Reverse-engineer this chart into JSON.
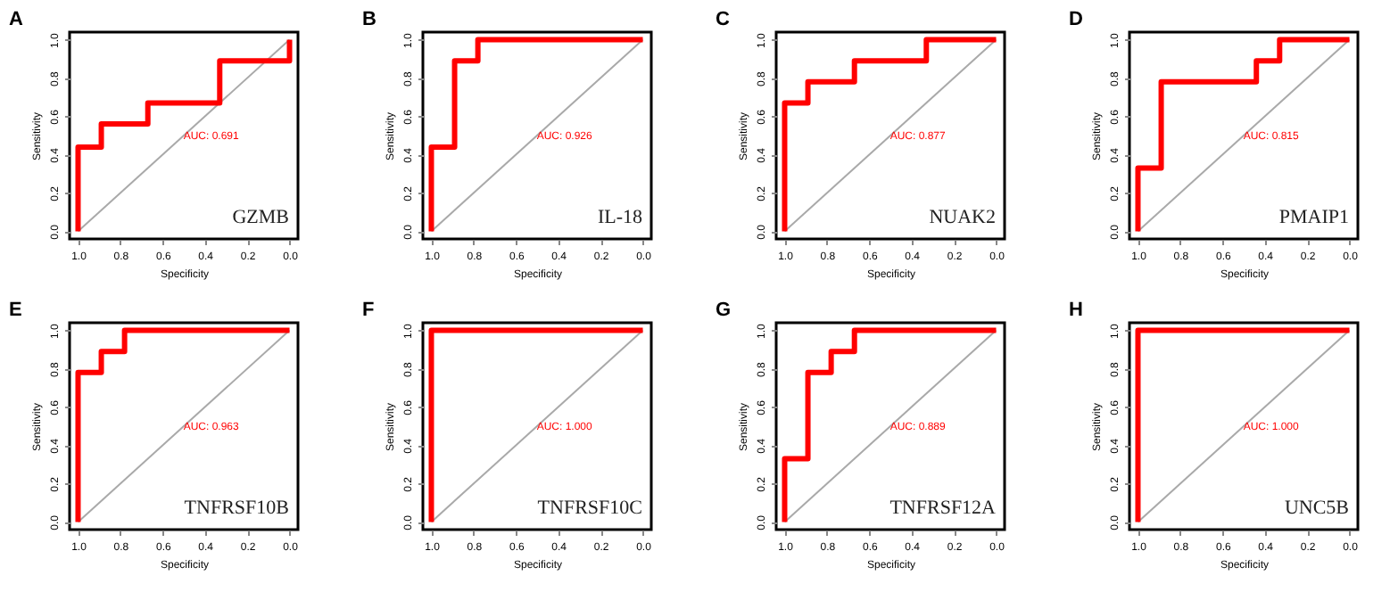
{
  "chart_data": [
    {
      "type": "line",
      "title": "A",
      "xlabel": "Specificity",
      "ylabel": "Sensitivity",
      "xlim": [
        1.04,
        -0.04
      ],
      "ylim": [
        -0.04,
        1.04
      ],
      "xticks": [
        {
          "value": 1,
          "label": "1.0"
        },
        {
          "value": 0.8,
          "label": "0.8"
        },
        {
          "value": 0.6,
          "label": "0.6"
        },
        {
          "value": 0.4,
          "label": "0.4"
        },
        {
          "value": 0.2,
          "label": "0.2"
        },
        {
          "value": 0,
          "label": "0.0"
        }
      ],
      "yticks": [
        {
          "value": 0,
          "label": "0.0"
        },
        {
          "value": 0.2,
          "label": "0.2"
        },
        {
          "value": 0.4,
          "label": "0.4"
        },
        {
          "value": 0.6,
          "label": "0.6"
        },
        {
          "value": 0.8,
          "label": "0.8"
        },
        {
          "value": 1,
          "label": "1.0"
        }
      ],
      "annotations": [
        "AUC: 0.691",
        "GZMB"
      ],
      "series": [
        {
          "type": "line",
          "color": "#a9a9a9",
          "x": [
            1,
            0
          ],
          "values": [
            0,
            1
          ]
        },
        {
          "type": "line",
          "color": "#ff0000",
          "x": [
            1,
            1,
            0.89,
            0.89,
            0.67,
            0.67,
            0.33,
            0.33,
            0,
            0
          ],
          "values": [
            0,
            0.44,
            0.44,
            0.56,
            0.56,
            0.67,
            0.67,
            0.89,
            0.89,
            1
          ]
        }
      ]
    },
    {
      "type": "line",
      "title": "B",
      "xlabel": "Specificity",
      "ylabel": "Sensitivity",
      "xlim": [
        1.04,
        -0.04
      ],
      "ylim": [
        -0.04,
        1.04
      ],
      "xticks": [
        {
          "value": 1,
          "label": "1.0"
        },
        {
          "value": 0.8,
          "label": "0.8"
        },
        {
          "value": 0.6,
          "label": "0.6"
        },
        {
          "value": 0.4,
          "label": "0.4"
        },
        {
          "value": 0.2,
          "label": "0.2"
        },
        {
          "value": 0,
          "label": "0.0"
        }
      ],
      "yticks": [
        {
          "value": 0,
          "label": "0.0"
        },
        {
          "value": 0.2,
          "label": "0.2"
        },
        {
          "value": 0.4,
          "label": "0.4"
        },
        {
          "value": 0.6,
          "label": "0.6"
        },
        {
          "value": 0.8,
          "label": "0.8"
        },
        {
          "value": 1,
          "label": "1.0"
        }
      ],
      "annotations": [
        "AUC: 0.926",
        "IL-18"
      ],
      "series": [
        {
          "type": "line",
          "color": "#a9a9a9",
          "x": [
            1,
            0
          ],
          "values": [
            0,
            1
          ]
        },
        {
          "type": "line",
          "color": "#ff0000",
          "x": [
            1,
            1,
            0.89,
            0.89,
            0.78,
            0.78,
            0
          ],
          "values": [
            0,
            0.44,
            0.44,
            0.89,
            0.89,
            1,
            1
          ]
        }
      ]
    },
    {
      "type": "line",
      "title": "C",
      "xlabel": "Specificity",
      "ylabel": "Sensitivity",
      "xlim": [
        1.04,
        -0.04
      ],
      "ylim": [
        -0.04,
        1.04
      ],
      "xticks": [
        {
          "value": 1,
          "label": "1.0"
        },
        {
          "value": 0.8,
          "label": "0.8"
        },
        {
          "value": 0.6,
          "label": "0.6"
        },
        {
          "value": 0.4,
          "label": "0.4"
        },
        {
          "value": 0.2,
          "label": "0.2"
        },
        {
          "value": 0,
          "label": "0.0"
        }
      ],
      "yticks": [
        {
          "value": 0,
          "label": "0.0"
        },
        {
          "value": 0.2,
          "label": "0.2"
        },
        {
          "value": 0.4,
          "label": "0.4"
        },
        {
          "value": 0.6,
          "label": "0.6"
        },
        {
          "value": 0.8,
          "label": "0.8"
        },
        {
          "value": 1,
          "label": "1.0"
        }
      ],
      "annotations": [
        "AUC: 0.877",
        "NUAK2"
      ],
      "series": [
        {
          "type": "line",
          "color": "#a9a9a9",
          "x": [
            1,
            0
          ],
          "values": [
            0,
            1
          ]
        },
        {
          "type": "line",
          "color": "#ff0000",
          "x": [
            1,
            1,
            0.89,
            0.89,
            0.67,
            0.67,
            0.33,
            0.33,
            0
          ],
          "values": [
            0,
            0.67,
            0.67,
            0.78,
            0.78,
            0.89,
            0.89,
            1,
            1
          ]
        }
      ]
    },
    {
      "type": "line",
      "title": "D",
      "xlabel": "Specificity",
      "ylabel": "Sensitivity",
      "xlim": [
        1.04,
        -0.04
      ],
      "ylim": [
        -0.04,
        1.04
      ],
      "xticks": [
        {
          "value": 1,
          "label": "1.0"
        },
        {
          "value": 0.8,
          "label": "0.8"
        },
        {
          "value": 0.6,
          "label": "0.6"
        },
        {
          "value": 0.4,
          "label": "0.4"
        },
        {
          "value": 0.2,
          "label": "0.2"
        },
        {
          "value": 0,
          "label": "0.0"
        }
      ],
      "yticks": [
        {
          "value": 0,
          "label": "0.0"
        },
        {
          "value": 0.2,
          "label": "0.2"
        },
        {
          "value": 0.4,
          "label": "0.4"
        },
        {
          "value": 0.6,
          "label": "0.6"
        },
        {
          "value": 0.8,
          "label": "0.8"
        },
        {
          "value": 1,
          "label": "1.0"
        }
      ],
      "annotations": [
        "AUC: 0.815",
        "PMAIP1"
      ],
      "series": [
        {
          "type": "line",
          "color": "#a9a9a9",
          "x": [
            1,
            0
          ],
          "values": [
            0,
            1
          ]
        },
        {
          "type": "line",
          "color": "#ff0000",
          "x": [
            1,
            1,
            0.89,
            0.89,
            0.44,
            0.44,
            0.33,
            0.33,
            0
          ],
          "values": [
            0,
            0.33,
            0.33,
            0.78,
            0.78,
            0.89,
            0.89,
            1,
            1
          ]
        }
      ]
    },
    {
      "type": "line",
      "title": "E",
      "xlabel": "Specificity",
      "ylabel": "Sensitivity",
      "xlim": [
        1.04,
        -0.04
      ],
      "ylim": [
        -0.04,
        1.04
      ],
      "xticks": [
        {
          "value": 1,
          "label": "1.0"
        },
        {
          "value": 0.8,
          "label": "0.8"
        },
        {
          "value": 0.6,
          "label": "0.6"
        },
        {
          "value": 0.4,
          "label": "0.4"
        },
        {
          "value": 0.2,
          "label": "0.2"
        },
        {
          "value": 0,
          "label": "0.0"
        }
      ],
      "yticks": [
        {
          "value": 0,
          "label": "0.0"
        },
        {
          "value": 0.2,
          "label": "0.2"
        },
        {
          "value": 0.4,
          "label": "0.4"
        },
        {
          "value": 0.6,
          "label": "0.6"
        },
        {
          "value": 0.8,
          "label": "0.8"
        },
        {
          "value": 1,
          "label": "1.0"
        }
      ],
      "annotations": [
        "AUC: 0.963",
        "TNFRSF10B"
      ],
      "series": [
        {
          "type": "line",
          "color": "#a9a9a9",
          "x": [
            1,
            0
          ],
          "values": [
            0,
            1
          ]
        },
        {
          "type": "line",
          "color": "#ff0000",
          "x": [
            1,
            1,
            0.89,
            0.89,
            0.78,
            0.78,
            0
          ],
          "values": [
            0,
            0.78,
            0.78,
            0.89,
            0.89,
            1,
            1
          ]
        }
      ]
    },
    {
      "type": "line",
      "title": "F",
      "xlabel": "Specificity",
      "ylabel": "Sensitivity",
      "xlim": [
        1.04,
        -0.04
      ],
      "ylim": [
        -0.04,
        1.04
      ],
      "xticks": [
        {
          "value": 1,
          "label": "1.0"
        },
        {
          "value": 0.8,
          "label": "0.8"
        },
        {
          "value": 0.6,
          "label": "0.6"
        },
        {
          "value": 0.4,
          "label": "0.4"
        },
        {
          "value": 0.2,
          "label": "0.2"
        },
        {
          "value": 0,
          "label": "0.0"
        }
      ],
      "yticks": [
        {
          "value": 0,
          "label": "0.0"
        },
        {
          "value": 0.2,
          "label": "0.2"
        },
        {
          "value": 0.4,
          "label": "0.4"
        },
        {
          "value": 0.6,
          "label": "0.6"
        },
        {
          "value": 0.8,
          "label": "0.8"
        },
        {
          "value": 1,
          "label": "1.0"
        }
      ],
      "annotations": [
        "AUC: 1.000",
        "TNFRSF10C"
      ],
      "series": [
        {
          "type": "line",
          "color": "#a9a9a9",
          "x": [
            1,
            0
          ],
          "values": [
            0,
            1
          ]
        },
        {
          "type": "line",
          "color": "#ff0000",
          "x": [
            1,
            1,
            0
          ],
          "values": [
            0,
            1,
            1
          ]
        }
      ]
    },
    {
      "type": "line",
      "title": "G",
      "xlabel": "Specificity",
      "ylabel": "Sensitivity",
      "xlim": [
        1.04,
        -0.04
      ],
      "ylim": [
        -0.04,
        1.04
      ],
      "xticks": [
        {
          "value": 1,
          "label": "1.0"
        },
        {
          "value": 0.8,
          "label": "0.8"
        },
        {
          "value": 0.6,
          "label": "0.6"
        },
        {
          "value": 0.4,
          "label": "0.4"
        },
        {
          "value": 0.2,
          "label": "0.2"
        },
        {
          "value": 0,
          "label": "0.0"
        }
      ],
      "yticks": [
        {
          "value": 0,
          "label": "0.0"
        },
        {
          "value": 0.2,
          "label": "0.2"
        },
        {
          "value": 0.4,
          "label": "0.4"
        },
        {
          "value": 0.6,
          "label": "0.6"
        },
        {
          "value": 0.8,
          "label": "0.8"
        },
        {
          "value": 1,
          "label": "1.0"
        }
      ],
      "annotations": [
        "AUC: 0.889",
        "TNFRSF12A"
      ],
      "series": [
        {
          "type": "line",
          "color": "#a9a9a9",
          "x": [
            1,
            0
          ],
          "values": [
            0,
            1
          ]
        },
        {
          "type": "line",
          "color": "#ff0000",
          "x": [
            1,
            1,
            0.89,
            0.89,
            0.78,
            0.78,
            0.67,
            0.67,
            0
          ],
          "values": [
            0,
            0.33,
            0.33,
            0.78,
            0.78,
            0.89,
            0.89,
            1,
            1
          ]
        }
      ]
    },
    {
      "type": "line",
      "title": "H",
      "xlabel": "Specificity",
      "ylabel": "Sensitivity",
      "xlim": [
        1.04,
        -0.04
      ],
      "ylim": [
        -0.04,
        1.04
      ],
      "xticks": [
        {
          "value": 1,
          "label": "1.0"
        },
        {
          "value": 0.8,
          "label": "0.8"
        },
        {
          "value": 0.6,
          "label": "0.6"
        },
        {
          "value": 0.4,
          "label": "0.4"
        },
        {
          "value": 0.2,
          "label": "0.2"
        },
        {
          "value": 0,
          "label": "0.0"
        }
      ],
      "yticks": [
        {
          "value": 0,
          "label": "0.0"
        },
        {
          "value": 0.2,
          "label": "0.2"
        },
        {
          "value": 0.4,
          "label": "0.4"
        },
        {
          "value": 0.6,
          "label": "0.6"
        },
        {
          "value": 0.8,
          "label": "0.8"
        },
        {
          "value": 1,
          "label": "1.0"
        }
      ],
      "annotations": [
        "AUC: 1.000",
        "UNC5B"
      ],
      "series": [
        {
          "type": "line",
          "color": "#a9a9a9",
          "x": [
            1,
            0
          ],
          "values": [
            0,
            1
          ]
        },
        {
          "type": "line",
          "color": "#ff0000",
          "x": [
            1,
            1,
            0
          ],
          "values": [
            0,
            1,
            1
          ]
        }
      ]
    }
  ]
}
